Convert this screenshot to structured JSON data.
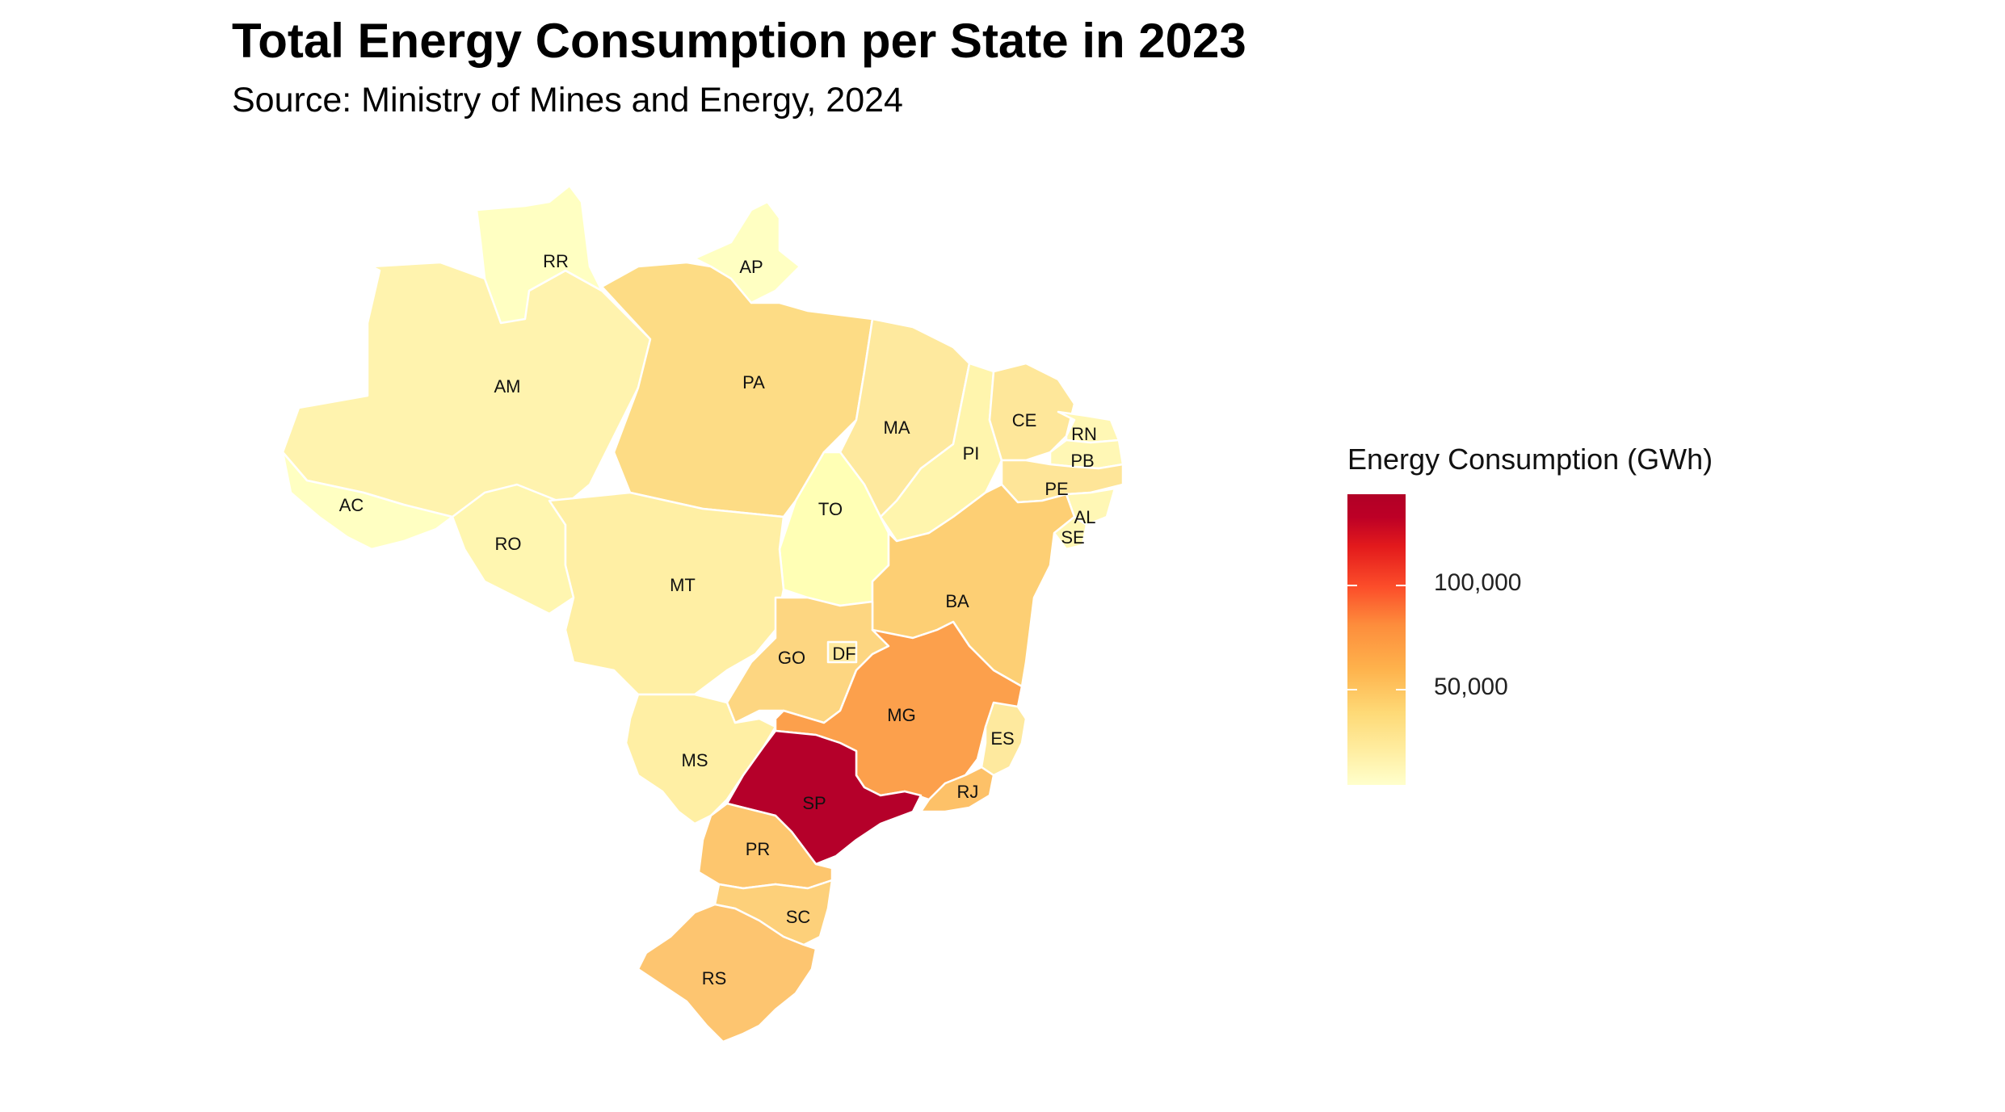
{
  "title": "Total Energy Consumption per State in 2023",
  "subtitle": "Source: Ministry of Mines and Energy, 2024",
  "legend": {
    "title": "Energy Consumption (GWh)",
    "ticks": [
      "100,000",
      "50,000"
    ],
    "colors": [
      "#ffffcc",
      "#ffeda0",
      "#fed976",
      "#feb24c",
      "#fd8d3c",
      "#fc4e2a",
      "#e31a1c",
      "#b10026"
    ]
  },
  "states": {
    "RR": "RR",
    "AP": "AP",
    "AM": "AM",
    "PA": "PA",
    "AC": "AC",
    "RO": "RO",
    "MA": "MA",
    "PI": "PI",
    "CE": "CE",
    "RN": "RN",
    "PB": "PB",
    "PE": "PE",
    "AL": "AL",
    "SE": "SE",
    "TO": "TO",
    "BA": "BA",
    "MT": "MT",
    "GO": "GO",
    "DF": "DF",
    "MG": "MG",
    "ES": "ES",
    "MS": "MS",
    "SP": "SP",
    "RJ": "RJ",
    "PR": "PR",
    "SC": "SC",
    "RS": "RS"
  },
  "state_colors": {
    "RR": "#ffffc2",
    "AP": "#ffffc2",
    "AM": "#fff3ae",
    "PA": "#fddc85",
    "AC": "#ffffc2",
    "RO": "#fff6b0",
    "MA": "#fee99e",
    "PI": "#fff5ad",
    "CE": "#fee79a",
    "RN": "#fff7b5",
    "PB": "#fff7b5",
    "PE": "#fee598",
    "AL": "#fff7b5",
    "SE": "#fff7b5",
    "TO": "#ffffb5",
    "BA": "#fdcf74",
    "MT": "#ffefa4",
    "GO": "#fdd681",
    "DF": "#fee99e",
    "MG": "#fca04c",
    "ES": "#fee99e",
    "MS": "#ffefa4",
    "SP": "#b5002a",
    "RJ": "#fdc168",
    "PR": "#fdc66e",
    "SC": "#fdd07a",
    "RS": "#fdc570"
  }
}
